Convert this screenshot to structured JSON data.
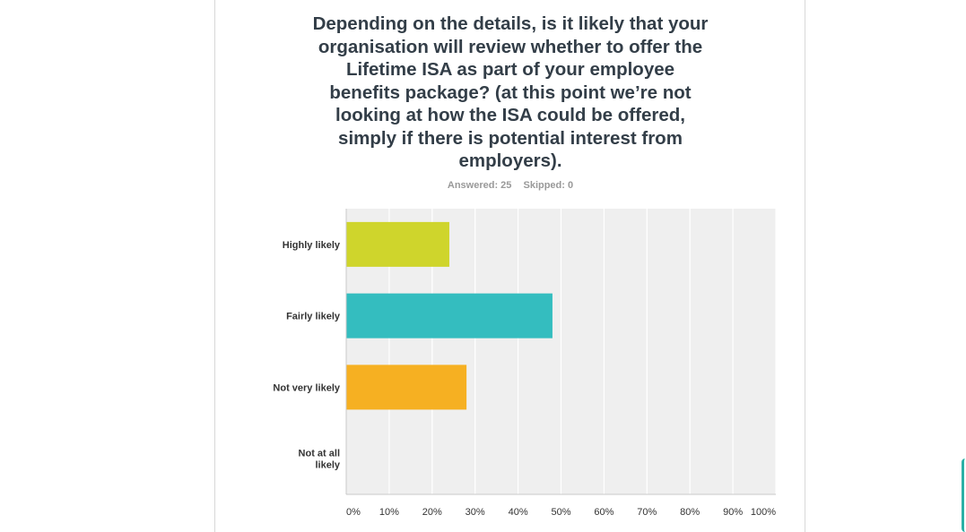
{
  "question": {
    "title": "Depending on the details, is it likely that your organisation will review whether to offer the Lifetime ISA as part of your employee benefits package? (at this point we’re not looking at how the ISA could be offered, simply if there is potential interest from employers).",
    "answered_label": "Answered: 25",
    "skipped_label": "Skipped: 0"
  },
  "chart_data": {
    "type": "bar",
    "orientation": "horizontal",
    "title": "Depending on the details, is it likely that your organisation will review whether to offer the Lifetime ISA as part of your employee benefits package? (at this point we’re not looking at how the ISA could be offered, simply if there is potential interest from employers).",
    "categories": [
      [
        "Highly likely"
      ],
      [
        "Fairly likely"
      ],
      [
        "Not very likely"
      ],
      [
        "Not at all",
        "likely"
      ]
    ],
    "values": [
      24,
      48,
      28,
      0
    ],
    "colors": [
      "#cfd52c",
      "#34bdbf",
      "#f6b022",
      "#9ad14b"
    ],
    "xlim": [
      0,
      100
    ],
    "x_ticks": [
      "0%",
      "10%",
      "20%",
      "30%",
      "40%",
      "50%",
      "60%",
      "70%",
      "80%",
      "90%",
      "100%"
    ],
    "xlabel": "",
    "ylabel": "",
    "grid": true,
    "background": "#efefef"
  }
}
